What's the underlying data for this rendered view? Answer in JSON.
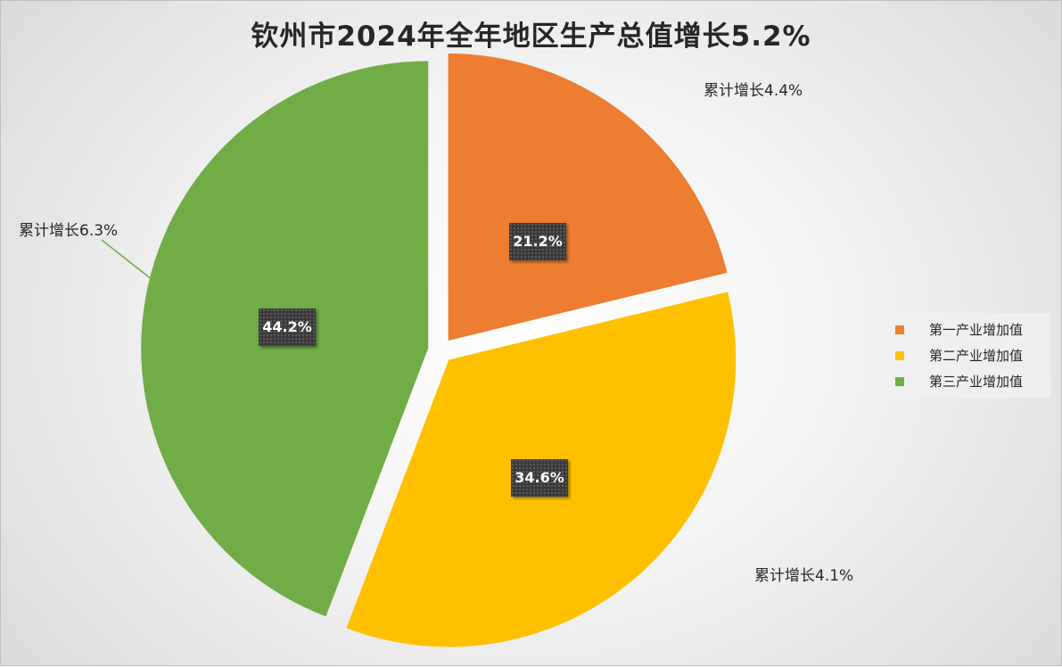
{
  "chart_data": {
    "type": "pie",
    "title": "钦州市2024年全年地区生产总值增长5.2%",
    "categories": [
      "第一产业增加值",
      "第二产业增加值",
      "第三产业增加值"
    ],
    "values": [
      21.2,
      34.6,
      44.2
    ],
    "value_labels": [
      "21.2%",
      "34.6%",
      "44.2%"
    ],
    "colors": [
      "#ED7D31",
      "#FFC000",
      "#70AD47"
    ],
    "annotations": [
      "累计增长4.4%",
      "累计增长4.1%",
      "累计增长6.3%"
    ],
    "exploded": true,
    "legend_position": "right"
  }
}
